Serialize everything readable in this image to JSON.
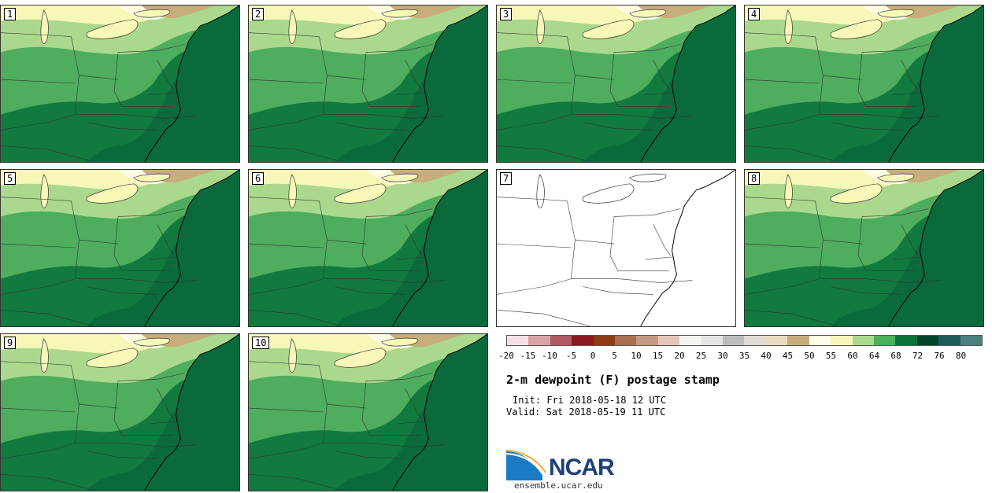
{
  "title": "2-m dewpoint (F) postage stamp",
  "init_text": "Init: Fri 2018-05-18 12 UTC",
  "valid_text": "Valid: Sat 2018-05-19 11 UTC",
  "logo_text": "NCAR",
  "url": "ensemble.ucar.edu",
  "panels": [
    {
      "label": "1",
      "has_data": true
    },
    {
      "label": "2",
      "has_data": true
    },
    {
      "label": "3",
      "has_data": true
    },
    {
      "label": "4",
      "has_data": true
    },
    {
      "label": "5",
      "has_data": true
    },
    {
      "label": "6",
      "has_data": true
    },
    {
      "label": "7",
      "has_data": false
    },
    {
      "label": "8",
      "has_data": true
    },
    {
      "label": "9",
      "has_data": true
    },
    {
      "label": "10",
      "has_data": true
    }
  ],
  "colorbar": {
    "tick_labels": [
      "-20",
      "-15",
      "-10",
      "-5",
      "0",
      "5",
      "10",
      "15",
      "20",
      "25",
      "30",
      "35",
      "40",
      "45",
      "50",
      "55",
      "60",
      "64",
      "68",
      "72",
      "76",
      "80"
    ],
    "colors": [
      "#f7e1e4",
      "#d9a3a8",
      "#b05a63",
      "#8b1a23",
      "#8a3d10",
      "#a8704e",
      "#c59a85",
      "#e2c7b8",
      "#f6f4f2",
      "#e6e4e2",
      "#bdbdbd",
      "#e0dcd2",
      "#e8dcc0",
      "#c7ad7b",
      "#fefde6",
      "#f7f7b8",
      "#aad98d",
      "#4caf5c",
      "#0b7039",
      "#03452a",
      "#1e5c5c",
      "#4f8080"
    ]
  },
  "colors": {
    "ocean": "#0b6a3c",
    "zone_60_64": "#aad98d",
    "zone_64_68": "#4fad5e",
    "zone_68_72": "#127a3f",
    "zone_55_60": "#f7f7b8",
    "zone_50_55": "#fdfbe2",
    "zone_45_50": "#c7ad7b",
    "logo_blue": "#1d3f7a"
  }
}
